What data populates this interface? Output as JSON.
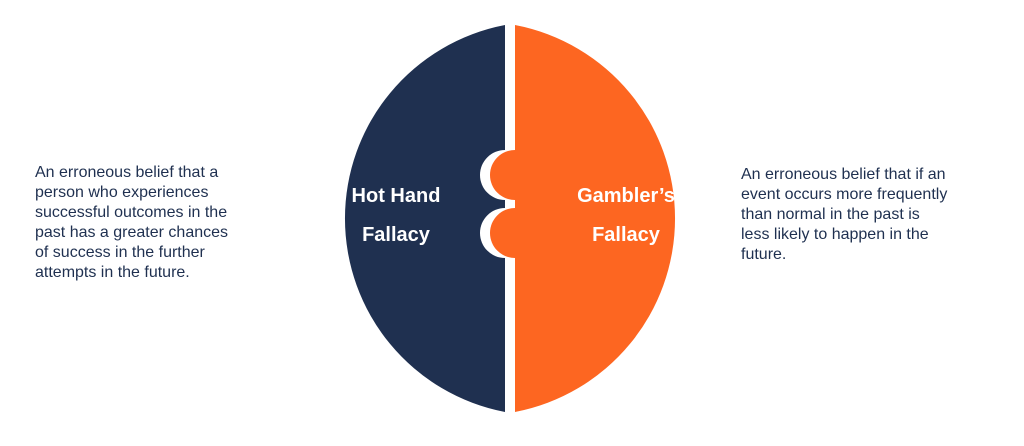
{
  "left_half": {
    "label_line1": "Hot Hand",
    "label_line2": "Fallacy",
    "color": "#1f3050",
    "description": "An erroneous belief that a\nperson who experiences\nsuccessful outcomes in the\npast has a greater chances\nof success in the further\nattempts in the future."
  },
  "right_half": {
    "label_line1": "Gambler’s",
    "label_line2": "Fallacy",
    "color": "#fd6621",
    "description": "An erroneous belief that if an\nevent occurs more frequently\nthan normal in the past is\nless likely to happen in the\nfuture."
  },
  "text_color": "#1f3050"
}
